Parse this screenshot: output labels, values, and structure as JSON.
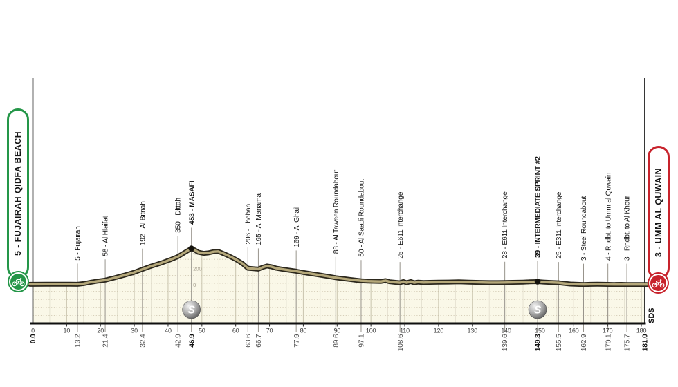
{
  "stage": {
    "start": {
      "label": "5 - FUJAIRAH QIDFA BEACH",
      "distance_km": "0.0"
    },
    "finish": {
      "label": "3 - UMM AL QUWAIN",
      "distance_km": "181.0"
    },
    "credit": "SDS",
    "sprint_icon_label": "S"
  },
  "colors": {
    "start_green": "#249648",
    "finish_red": "#c8232c",
    "band_edge": "#2c281d",
    "band_fill": "#b5a87a",
    "area_fill": "#faf8e8",
    "grid_major": "#c9c4ae",
    "grid_minor": "#dedac8",
    "grid_dots": "#c9bfa8",
    "leader_line": "#98948c"
  },
  "chart_data": {
    "type": "area",
    "title": "",
    "xlabel": "km",
    "ylabel": "elevation (m)",
    "xlim": [
      0,
      181
    ],
    "total_km": "181.0",
    "x_ticks": [
      0,
      10,
      20,
      30,
      40,
      50,
      60,
      70,
      80,
      90,
      100,
      110,
      120,
      130,
      140,
      150,
      160,
      170,
      180
    ],
    "elevation_scale": {
      "values": [
        400,
        200,
        0
      ]
    },
    "profile": [
      [
        0,
        5
      ],
      [
        4,
        6
      ],
      [
        8,
        7
      ],
      [
        11,
        6
      ],
      [
        13.2,
        5
      ],
      [
        15,
        14
      ],
      [
        17,
        30
      ],
      [
        19,
        44
      ],
      [
        21.4,
        58
      ],
      [
        24,
        85
      ],
      [
        27,
        118
      ],
      [
        30,
        155
      ],
      [
        32.4,
        192
      ],
      [
        35,
        232
      ],
      [
        38,
        272
      ],
      [
        40.5,
        310
      ],
      [
        42.9,
        350
      ],
      [
        44.5,
        392
      ],
      [
        45.8,
        425
      ],
      [
        46.9,
        453
      ],
      [
        47.8,
        436
      ],
      [
        49,
        405
      ],
      [
        50.5,
        392
      ],
      [
        52,
        398
      ],
      [
        53.5,
        412
      ],
      [
        54.8,
        416
      ],
      [
        56,
        396
      ],
      [
        57.5,
        368
      ],
      [
        59,
        338
      ],
      [
        60.5,
        305
      ],
      [
        62,
        265
      ],
      [
        63.6,
        206
      ],
      [
        65,
        201
      ],
      [
        66.7,
        195
      ],
      [
        68,
        218
      ],
      [
        69.3,
        234
      ],
      [
        70.6,
        224
      ],
      [
        72,
        206
      ],
      [
        74,
        192
      ],
      [
        76,
        180
      ],
      [
        77.9,
        169
      ],
      [
        80,
        153
      ],
      [
        82.5,
        136
      ],
      [
        85,
        120
      ],
      [
        87.5,
        103
      ],
      [
        89.6,
        88
      ],
      [
        91.5,
        78
      ],
      [
        93.5,
        67
      ],
      [
        95.5,
        57
      ],
      [
        97.1,
        50
      ],
      [
        99,
        46
      ],
      [
        101,
        43
      ],
      [
        103,
        41
      ],
      [
        104.3,
        52
      ],
      [
        105.6,
        37
      ],
      [
        107,
        31
      ],
      [
        108.6,
        25
      ],
      [
        109.6,
        40
      ],
      [
        110.6,
        25
      ],
      [
        111.8,
        40
      ],
      [
        112.8,
        25
      ],
      [
        114,
        33
      ],
      [
        115.5,
        28
      ],
      [
        117.5,
        30
      ],
      [
        120,
        32
      ],
      [
        123,
        34
      ],
      [
        126,
        37
      ],
      [
        129,
        33
      ],
      [
        132,
        29
      ],
      [
        135,
        27
      ],
      [
        137.5,
        27
      ],
      [
        139.6,
        28
      ],
      [
        142,
        30
      ],
      [
        145,
        33
      ],
      [
        147,
        36
      ],
      [
        149.3,
        39
      ],
      [
        151,
        34
      ],
      [
        153,
        29
      ],
      [
        155.5,
        25
      ],
      [
        157,
        17
      ],
      [
        159,
        9
      ],
      [
        161,
        5
      ],
      [
        162.9,
        3
      ],
      [
        165,
        5
      ],
      [
        167,
        6
      ],
      [
        168.8,
        5
      ],
      [
        170.1,
        4
      ],
      [
        172,
        3
      ],
      [
        174,
        4
      ],
      [
        175.7,
        3
      ],
      [
        178,
        3
      ],
      [
        181,
        3
      ]
    ],
    "waypoints": [
      {
        "name": "5 - Fujairah",
        "km": 13.2,
        "elev": 5,
        "dist": "13.2",
        "bold": false,
        "sprint": false
      },
      {
        "name": "58 - Al Hlaifat",
        "km": 21.4,
        "elev": 58,
        "dist": "21.4",
        "bold": false,
        "sprint": false
      },
      {
        "name": "192 - Al Bitnah",
        "km": 32.4,
        "elev": 192,
        "dist": "32.4",
        "bold": false,
        "sprint": false
      },
      {
        "name": "350 - Dittah",
        "km": 42.9,
        "elev": 350,
        "dist": "42.9",
        "bold": false,
        "sprint": false
      },
      {
        "name": "453 - MASAFI",
        "km": 46.9,
        "elev": 453,
        "dist": "46.9",
        "bold": true,
        "sprint": true
      },
      {
        "name": "206 - Thoban",
        "km": 63.6,
        "elev": 206,
        "dist": "63.6",
        "bold": false,
        "sprint": false
      },
      {
        "name": "195 - Al Manama",
        "km": 66.7,
        "elev": 195,
        "dist": "66.7",
        "bold": false,
        "sprint": false
      },
      {
        "name": "169 - Al Ghail",
        "km": 77.9,
        "elev": 169,
        "dist": "77.9",
        "bold": false,
        "sprint": false
      },
      {
        "name": "88 - Al Taween Roundabout",
        "km": 89.6,
        "elev": 88,
        "dist": "89.6",
        "bold": false,
        "sprint": false
      },
      {
        "name": "50 - Al Saadi Roundabout",
        "km": 97.1,
        "elev": 50,
        "dist": "97.1",
        "bold": false,
        "sprint": false
      },
      {
        "name": "25 - E611 Interchange",
        "km": 108.6,
        "elev": 25,
        "dist": "108.6",
        "bold": false,
        "sprint": false
      },
      {
        "name": "28 - E611 Interchange",
        "km": 139.6,
        "elev": 28,
        "dist": "139.6",
        "bold": false,
        "sprint": false
      },
      {
        "name": "39 - INTERMEDIATE SPRINT #2",
        "km": 149.3,
        "elev": 39,
        "dist": "149.3",
        "bold": true,
        "sprint": true
      },
      {
        "name": "25 - E311 Interchange",
        "km": 155.5,
        "elev": 25,
        "dist": "155.5",
        "bold": false,
        "sprint": false
      },
      {
        "name": "3 - Steel Roundabout",
        "km": 162.9,
        "elev": 3,
        "dist": "162.9",
        "bold": false,
        "sprint": false
      },
      {
        "name": "4 - Rndbt. to Umm al Quwain",
        "km": 170.1,
        "elev": 4,
        "dist": "170.1",
        "bold": false,
        "sprint": false
      },
      {
        "name": "3 - Rndbt. to Al Khour",
        "km": 175.7,
        "elev": 3,
        "dist": "175.7",
        "bold": false,
        "sprint": false
      }
    ]
  }
}
